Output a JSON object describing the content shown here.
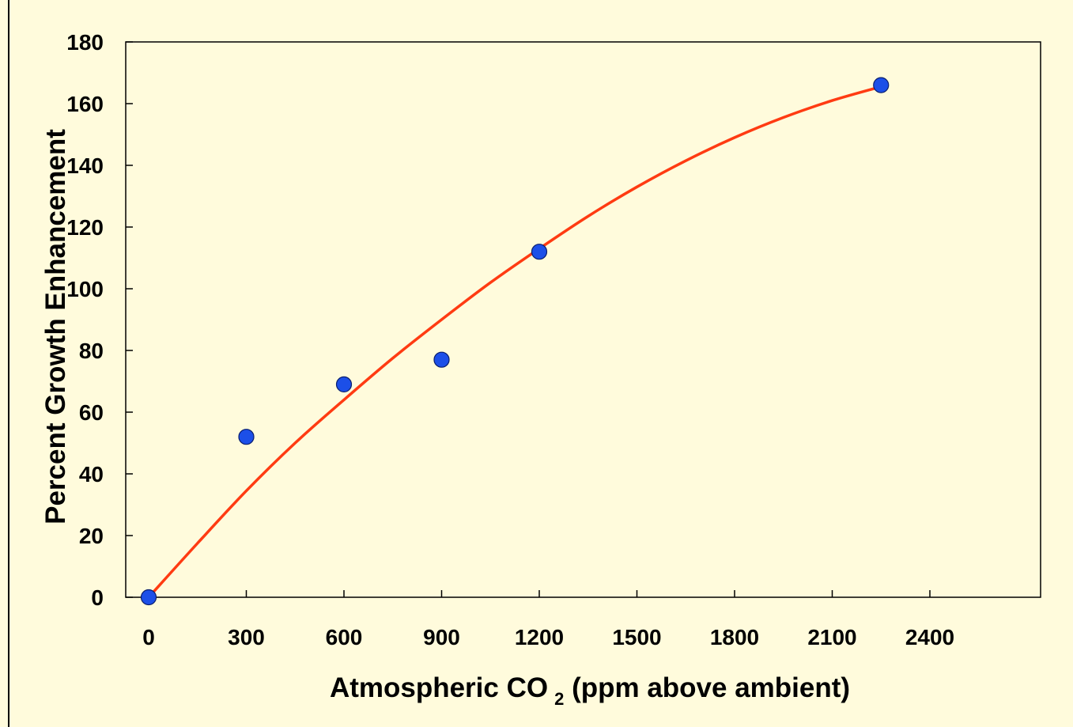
{
  "chart_data": {
    "type": "scatter",
    "title": "",
    "xlabel": {
      "main": "Atmospheric CO",
      "subscript": "2",
      "suffix": " (ppm above ambient)"
    },
    "ylabel": "Percent Growth Enhancement",
    "xlim": [
      0,
      2400
    ],
    "ylim": [
      0,
      180
    ],
    "xticks": [
      0,
      300,
      600,
      900,
      1200,
      1500,
      1800,
      2100,
      2400
    ],
    "yticks": [
      0,
      20,
      40,
      60,
      80,
      100,
      120,
      140,
      160,
      180
    ],
    "grid": false,
    "legend": "none",
    "series": [
      {
        "kind": "scatter",
        "color": "#1c4fe8",
        "points": [
          {
            "x": 0,
            "y": 0
          },
          {
            "x": 300,
            "y": 52
          },
          {
            "x": 600,
            "y": 69
          },
          {
            "x": 900,
            "y": 77
          },
          {
            "x": 1200,
            "y": 112
          },
          {
            "x": 2250,
            "y": 166
          }
        ]
      },
      {
        "kind": "fit-curve",
        "color": "#ff3b12",
        "x": [
          0,
          150,
          300,
          450,
          600,
          750,
          900,
          1050,
          1200,
          1350,
          1500,
          1650,
          1800,
          1950,
          2100,
          2250
        ],
        "y": [
          0,
          17.5,
          34.5,
          50,
          64,
          77.5,
          90,
          102,
          113,
          123.5,
          133,
          141.5,
          149,
          155.5,
          161,
          165.5
        ]
      }
    ],
    "colors": {
      "background": "#fffbdc",
      "plot_area": "#fffbdc",
      "axis": "#000000"
    }
  }
}
